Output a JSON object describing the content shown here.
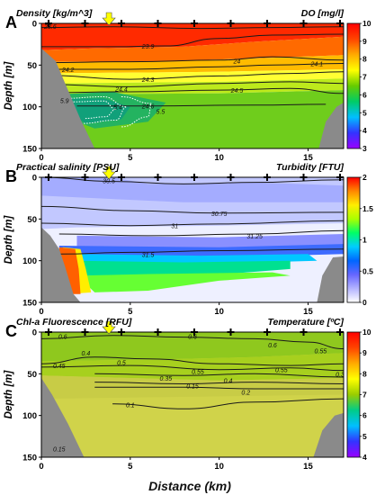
{
  "figure": {
    "x_axis_label": "Distance (km)",
    "y_axis_label": "Depth [m]",
    "x_ticks": [
      0,
      5,
      10,
      15
    ],
    "y_ticks": [
      0,
      50,
      100,
      150
    ],
    "station_marker_count": 9,
    "arrow_color": "#ffff00"
  },
  "chart_data": [
    {
      "type": "heatmap",
      "panel_letter": "A",
      "title_left": "Density [kg/m^3]",
      "title_right": "DO [mg/l]",
      "xlim": [
        0,
        17
      ],
      "ylim": [
        150,
        0
      ],
      "colorbar": {
        "ticks": [
          3,
          4,
          5,
          6,
          7,
          8,
          9,
          10
        ],
        "min": 3,
        "max": 10,
        "colors": [
          "#9900ff",
          "#3333ff",
          "#00bfff",
          "#00cc66",
          "#66cc00",
          "#ffff00",
          "#ffaa00",
          "#ff4400",
          "#ff0000"
        ]
      },
      "contour_labels": [
        {
          "x": 0.5,
          "y": 3,
          "text": "23.6"
        },
        {
          "x": 6.0,
          "y": 27,
          "text": "23.9"
        },
        {
          "x": 1.5,
          "y": 55,
          "text": "24.2"
        },
        {
          "x": 6.0,
          "y": 67,
          "text": "24.3"
        },
        {
          "x": 4.5,
          "y": 78,
          "text": "24.4"
        },
        {
          "x": 11.0,
          "y": 45,
          "text": "24"
        },
        {
          "x": 15.5,
          "y": 48,
          "text": "24.1"
        },
        {
          "x": 11.0,
          "y": 80,
          "text": "24.5"
        },
        {
          "x": 6.0,
          "y": 99,
          "text": "24.6"
        },
        {
          "x": 1.3,
          "y": 92,
          "text": "5.9"
        },
        {
          "x": 4.3,
          "y": 100,
          "text": "5.4"
        },
        {
          "x": 6.7,
          "y": 105,
          "text": "5.5"
        }
      ]
    },
    {
      "type": "heatmap",
      "panel_letter": "B",
      "title_left": "Practical salinity [PSU]",
      "title_right": "Turbidity [FTU]",
      "xlim": [
        0,
        17
      ],
      "ylim": [
        150,
        0
      ],
      "colorbar": {
        "ticks": [
          0,
          0.5,
          1,
          1.5,
          2
        ],
        "min": 0,
        "max": 2,
        "colors": [
          "#ffffff",
          "#b3b3ff",
          "#6666ff",
          "#0066ff",
          "#00ccff",
          "#00ff66",
          "#aaff00",
          "#ffee00",
          "#ff8800",
          "#ff0000"
        ]
      },
      "contour_labels": [
        {
          "x": 3.8,
          "y": 4,
          "text": "30.5"
        },
        {
          "x": 10.0,
          "y": 43,
          "text": "30.75"
        },
        {
          "x": 7.5,
          "y": 58,
          "text": "31"
        },
        {
          "x": 12.0,
          "y": 70,
          "text": "31.25"
        },
        {
          "x": 6.0,
          "y": 92,
          "text": "31.5"
        }
      ]
    },
    {
      "type": "heatmap",
      "panel_letter": "C",
      "title_left": "Chl-a Fluorescence [RFU]",
      "title_right": "Temperature [ºC]",
      "xlim": [
        0,
        17
      ],
      "ylim": [
        150,
        0
      ],
      "colorbar": {
        "ticks": [
          4,
          5,
          6,
          7,
          8,
          9,
          10
        ],
        "min": 4,
        "max": 10,
        "colors": [
          "#9900ff",
          "#3333ff",
          "#00bfff",
          "#00cc88",
          "#99cc00",
          "#ffff00",
          "#ffaa00",
          "#ff4400",
          "#ff0000"
        ]
      },
      "contour_labels": [
        {
          "x": 1.2,
          "y": 5,
          "text": "0.6"
        },
        {
          "x": 2.5,
          "y": 25,
          "text": "0.4"
        },
        {
          "x": 1.0,
          "y": 40,
          "text": "0.45"
        },
        {
          "x": 4.5,
          "y": 36,
          "text": "0.5"
        },
        {
          "x": 8.5,
          "y": 5,
          "text": "0.6"
        },
        {
          "x": 13.0,
          "y": 15,
          "text": "0.6"
        },
        {
          "x": 15.7,
          "y": 22,
          "text": "0.55"
        },
        {
          "x": 8.8,
          "y": 47,
          "text": "0.55"
        },
        {
          "x": 13.5,
          "y": 45,
          "text": "0.55"
        },
        {
          "x": 7.0,
          "y": 55,
          "text": "0.35"
        },
        {
          "x": 10.5,
          "y": 58,
          "text": "0.4"
        },
        {
          "x": 16.8,
          "y": 50,
          "text": "0.3"
        },
        {
          "x": 8.5,
          "y": 64,
          "text": "0.15"
        },
        {
          "x": 11.5,
          "y": 72,
          "text": "0.2"
        },
        {
          "x": 5.0,
          "y": 87,
          "text": "0.1"
        },
        {
          "x": 1.0,
          "y": 140,
          "text": "0.15"
        }
      ]
    }
  ]
}
